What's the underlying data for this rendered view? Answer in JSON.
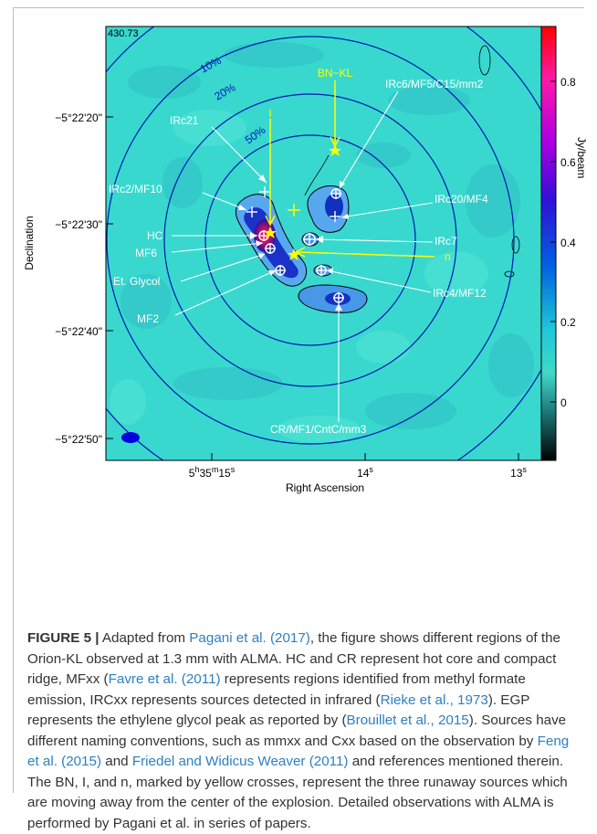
{
  "figure": {
    "map_corner_value": "430.73",
    "yaxis_label": "Declination",
    "xaxis_label": "Right Ascension",
    "dec_ticks": [
      "−5°22'20\"",
      "−5°22'30\"",
      "−5°22'40\"",
      "−5°22'50\""
    ],
    "ra_ticks": [
      {
        "h": "5",
        "m": "35",
        "s": "15"
      },
      {
        "s": "14"
      },
      {
        "s": "13"
      }
    ],
    "colorbar_label": "Jy/beam",
    "colorbar_ticks": [
      "0.8",
      "0.6",
      "0.4",
      "0.2",
      "0"
    ],
    "contour_labels": [
      "10%",
      "20%",
      "50%"
    ],
    "sources": {
      "bn_kl": "BN−KL",
      "i": "I",
      "irc21": "IRc21",
      "irc6": "IRc6/MF5/C15/mm2",
      "irc2": "IRc2/MF10",
      "irc20": "IRc20/MF4",
      "hc": "HC",
      "irc7": "IRc7",
      "mf6": "MF6",
      "n": "n",
      "eth_glycol": "Et. Glycol",
      "irc4": "IRc4/MF12",
      "mf2": "MF2",
      "cr": "CR/MF1/CntC/mm3"
    },
    "colors": {
      "background": "#38d8cf",
      "yellow_marker": "#ffff00",
      "ring": "#0018b0"
    }
  },
  "caption": {
    "label": "FIGURE 5 |",
    "p1": " Adapted from ",
    "r1": "Pagani et al. (2017)",
    "p2": ", the figure shows different regions of the Orion-KL observed at 1.3 mm with ALMA. HC and CR represent hot core and compact ridge, MFxx (",
    "r2": "Favre et al. (2011)",
    "p3": " represents regions identified from methyl formate emission, IRCxx represents sources detected in infrared (",
    "r3": "Rieke et al., 1973",
    "p4": "). EGP represents the ethylene glycol peak as reported by (",
    "r4": "Brouillet et al., 2015",
    "p5": "). Sources have different naming conventions, such as mmxx and Cxx based on the observation by ",
    "r5": "Feng et al. (2015)",
    "p6": " and ",
    "r6": "Friedel and Widicus Weaver (2011)",
    "p7": " and references mentioned therein. The BN, I, and n, marked by yellow crosses, represent the three runaway sources which are moving away from the center of the explosion. Detailed observations with ALMA is performed by Pagani et al. in series of papers."
  }
}
